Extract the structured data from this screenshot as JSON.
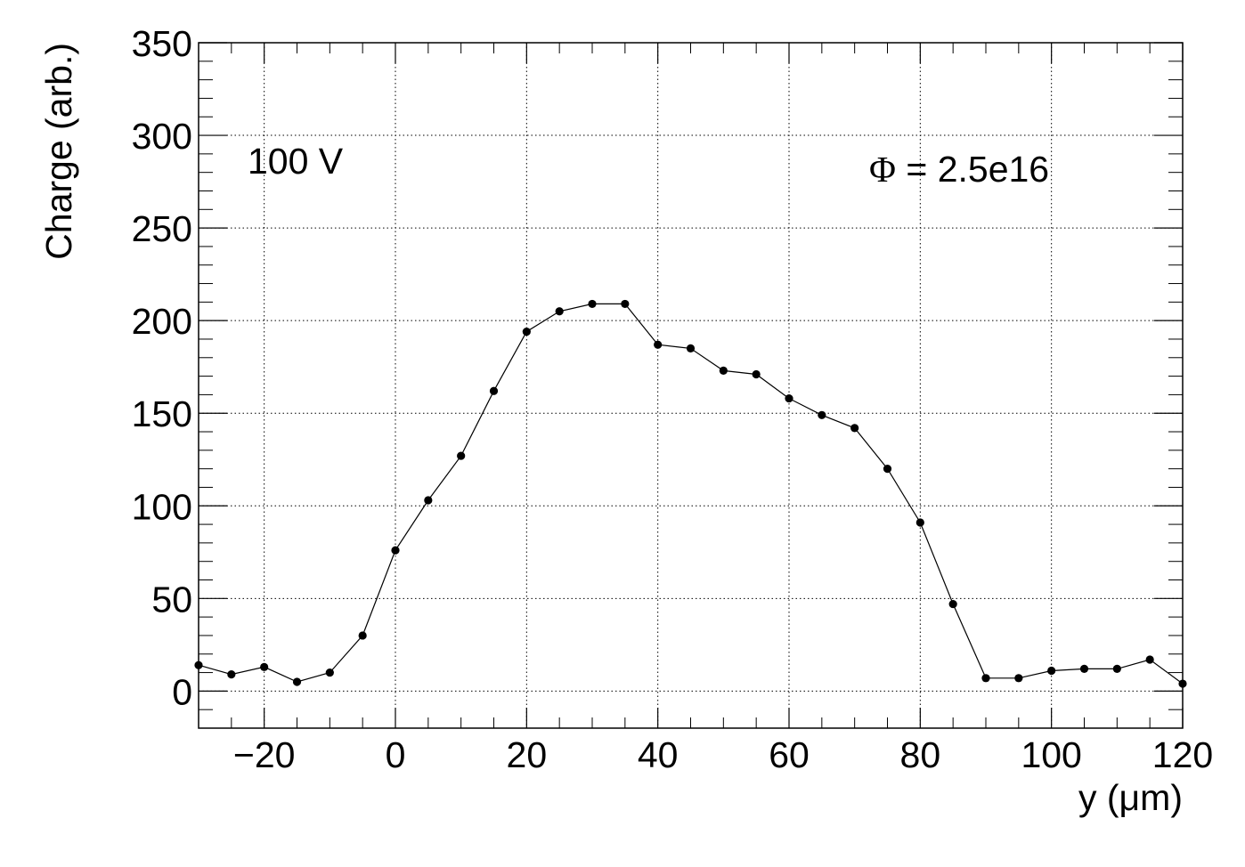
{
  "chart_data": {
    "type": "line",
    "xlabel": "y (μm)",
    "ylabel": "Charge (arb.)",
    "xlim": [
      -30,
      120
    ],
    "ylim": [
      -20,
      350
    ],
    "xticks": [
      -20,
      0,
      20,
      40,
      60,
      80,
      100,
      120
    ],
    "xtick_labels": [
      "−20",
      "0",
      "20",
      "40",
      "60",
      "80",
      "100",
      "120"
    ],
    "yticks": [
      0,
      50,
      100,
      150,
      200,
      250,
      300,
      350
    ],
    "ytick_labels": [
      "0",
      "50",
      "100",
      "150",
      "200",
      "250",
      "300",
      "350"
    ],
    "grid": true,
    "annotations": {
      "voltage": "100 V",
      "fluence_symbol": "Φ",
      "fluence_value": " = 2.5e16"
    },
    "series": [
      {
        "color": "#000000",
        "x": [
          -30,
          -25,
          -20,
          -15,
          -10,
          -5,
          0,
          5,
          10,
          15,
          20,
          25,
          30,
          35,
          40,
          45,
          50,
          55,
          60,
          65,
          70,
          75,
          80,
          85,
          90,
          95,
          100,
          105,
          110,
          115,
          120
        ],
        "y": [
          14,
          9,
          13,
          5,
          10,
          30,
          76,
          103,
          127,
          162,
          194,
          205,
          209,
          209,
          187,
          185,
          173,
          171,
          158,
          149,
          142,
          120,
          91,
          47,
          7,
          7,
          11,
          12,
          12,
          17,
          4
        ]
      }
    ]
  }
}
